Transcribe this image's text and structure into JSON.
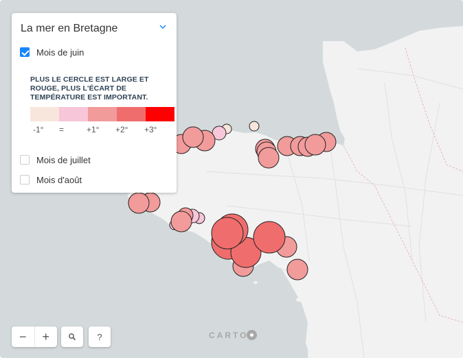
{
  "panel": {
    "title": "La mer en Bretagne",
    "options": [
      {
        "label": "Mois de juin",
        "checked": true
      },
      {
        "label": "Mois de juillet",
        "checked": false
      },
      {
        "label": "Mois d'août",
        "checked": false
      }
    ],
    "legend_text": "PLUS LE CERCLE EST LARGE ET ROUGE, PLUS L'ÉCART DE TEMPÉRATURE EST IMPORTANT.",
    "legend_labels": [
      "-1°",
      "=",
      "+1°",
      "+2°",
      "+3°"
    ],
    "legend_colors": [
      "#f8e6dc",
      "#f7c6d9",
      "#f29b9b",
      "#f06d6d",
      "#ff0000"
    ]
  },
  "controls": {
    "zoom_out": "−",
    "zoom_in": "+",
    "search_icon": "search-icon",
    "help": "?"
  },
  "attribution": "CARTO",
  "colors": {
    "sea": "#d4dadc",
    "land": "#f2f2f2",
    "accent": "#1785fb"
  }
}
